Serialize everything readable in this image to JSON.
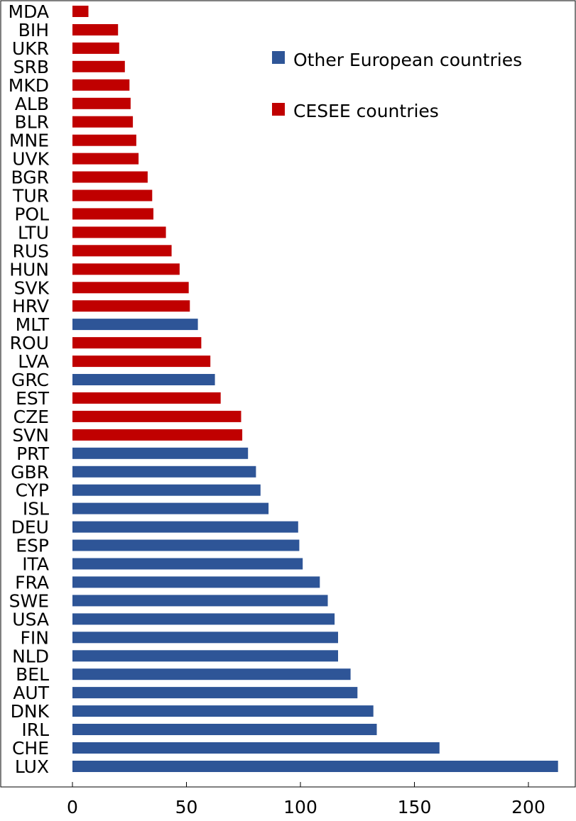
{
  "chart_data": {
    "type": "bar",
    "orientation": "horizontal",
    "title": "",
    "xlabel": "",
    "ylabel": "",
    "xlim": [
      0,
      215
    ],
    "xticks": [
      0,
      50,
      100,
      150,
      200
    ],
    "grid": false,
    "legend": {
      "placement": "top-right",
      "entries": [
        {
          "name": "Other European countries",
          "color": "#2e5597"
        },
        {
          "name": "CESEE countries",
          "color": "#c00000"
        }
      ]
    },
    "series_colors": {
      "other": "#2e5597",
      "cesee": "#c00000"
    },
    "categories": [
      "MDA",
      "BIH",
      "UKR",
      "SRB",
      "MKD",
      "ALB",
      "BLR",
      "MNE",
      "UVK",
      "BGR",
      "TUR",
      "POL",
      "LTU",
      "RUS",
      "HUN",
      "SVK",
      "HRV",
      "MLT",
      "ROU",
      "LVA",
      "GRC",
      "EST",
      "CZE",
      "SVN",
      "PRT",
      "GBR",
      "CYP",
      "ISL",
      "DEU",
      "ESP",
      "ITA",
      "FRA",
      "SWE",
      "USA",
      "FIN",
      "NLD",
      "BEL",
      "AUT",
      "DNK",
      "IRL",
      "CHE",
      "LUX"
    ],
    "values": [
      7,
      20,
      20.5,
      23,
      25,
      25.5,
      26.5,
      28,
      29,
      33,
      35,
      35.5,
      41,
      43.5,
      47,
      51,
      51.5,
      55,
      56.5,
      60.5,
      62.5,
      65,
      74,
      74.5,
      77,
      80.5,
      82.5,
      86,
      99,
      99.5,
      101,
      108.5,
      112,
      115,
      116.5,
      116.5,
      122,
      125,
      132,
      133.5,
      161,
      213
    ],
    "groups": [
      "cesee",
      "cesee",
      "cesee",
      "cesee",
      "cesee",
      "cesee",
      "cesee",
      "cesee",
      "cesee",
      "cesee",
      "cesee",
      "cesee",
      "cesee",
      "cesee",
      "cesee",
      "cesee",
      "cesee",
      "other",
      "cesee",
      "cesee",
      "other",
      "cesee",
      "cesee",
      "cesee",
      "other",
      "other",
      "other",
      "other",
      "other",
      "other",
      "other",
      "other",
      "other",
      "other",
      "other",
      "other",
      "other",
      "other",
      "other",
      "other",
      "other",
      "other"
    ]
  }
}
